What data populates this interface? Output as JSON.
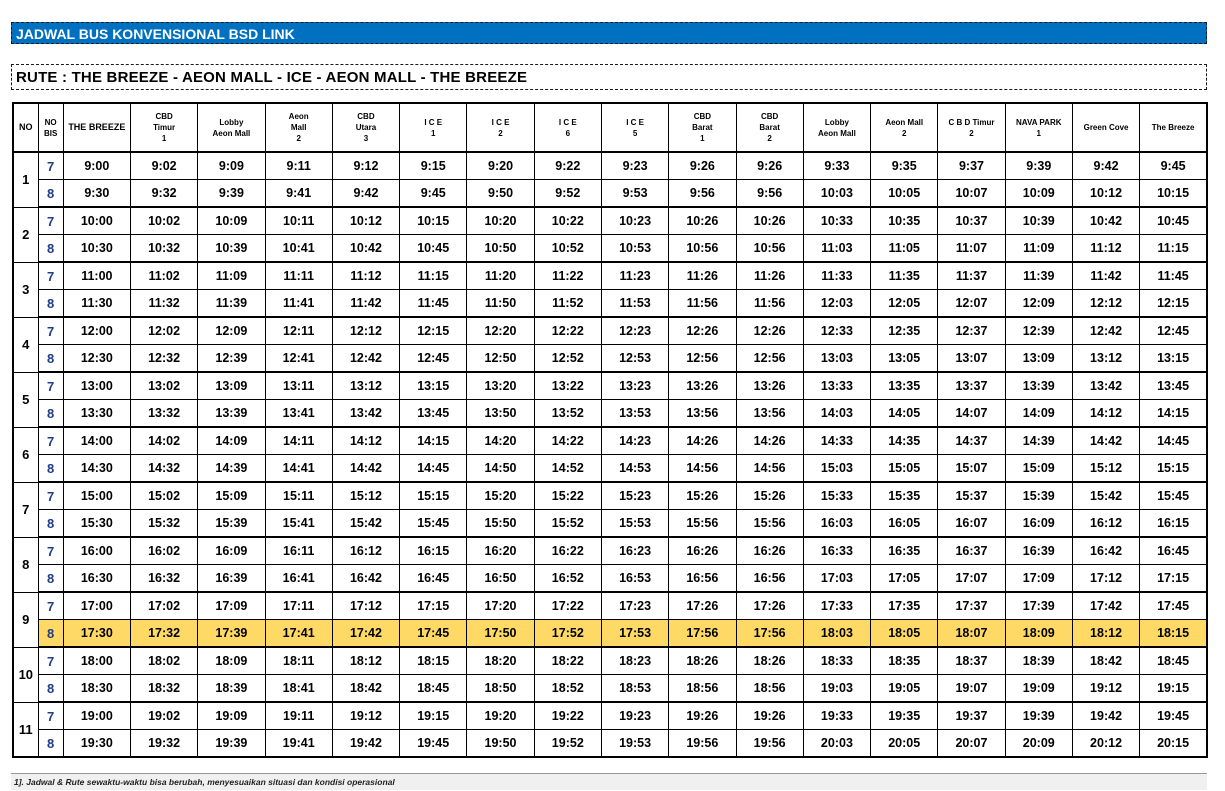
{
  "title": "JADWAL BUS KONVENSIONAL BSD LINK",
  "route": "RUTE : THE BREEZE - AEON MALL - ICE - AEON MALL - THE BREEZE",
  "headers": {
    "no": "NO",
    "bis": [
      "NO",
      "BIS"
    ],
    "stops": [
      [
        "THE BREEZE"
      ],
      [
        "CBD",
        "Timur",
        "1"
      ],
      [
        "Lobby",
        "Aeon Mall"
      ],
      [
        "Aeon",
        "Mall",
        "2"
      ],
      [
        "CBD",
        "Utara",
        "3"
      ],
      [
        "I C E",
        "1"
      ],
      [
        "I C E",
        "2"
      ],
      [
        "I C E",
        "6"
      ],
      [
        "I C E",
        "5"
      ],
      [
        "CBD",
        "Barat",
        "1"
      ],
      [
        "CBD",
        "Barat",
        "2"
      ],
      [
        "Lobby",
        "Aeon Mall"
      ],
      [
        "Aeon Mall",
        "2"
      ],
      [
        "C B D  Timur",
        "2"
      ],
      [
        "NAVA PARK",
        "1"
      ],
      [
        "Green Cove"
      ],
      [
        "The Breeze"
      ]
    ]
  },
  "trips": [
    {
      "no": "1",
      "rows": [
        {
          "bis": "7",
          "times": [
            "9:00",
            "9:02",
            "9:09",
            "9:11",
            "9:12",
            "9:15",
            "9:20",
            "9:22",
            "9:23",
            "9:26",
            "9:26",
            "9:33",
            "9:35",
            "9:37",
            "9:39",
            "9:42",
            "9:45"
          ]
        },
        {
          "bis": "8",
          "times": [
            "9:30",
            "9:32",
            "9:39",
            "9:41",
            "9:42",
            "9:45",
            "9:50",
            "9:52",
            "9:53",
            "9:56",
            "9:56",
            "10:03",
            "10:05",
            "10:07",
            "10:09",
            "10:12",
            "10:15"
          ]
        }
      ]
    },
    {
      "no": "2",
      "rows": [
        {
          "bis": "7",
          "times": [
            "10:00",
            "10:02",
            "10:09",
            "10:11",
            "10:12",
            "10:15",
            "10:20",
            "10:22",
            "10:23",
            "10:26",
            "10:26",
            "10:33",
            "10:35",
            "10:37",
            "10:39",
            "10:42",
            "10:45"
          ]
        },
        {
          "bis": "8",
          "times": [
            "10:30",
            "10:32",
            "10:39",
            "10:41",
            "10:42",
            "10:45",
            "10:50",
            "10:52",
            "10:53",
            "10:56",
            "10:56",
            "11:03",
            "11:05",
            "11:07",
            "11:09",
            "11:12",
            "11:15"
          ]
        }
      ]
    },
    {
      "no": "3",
      "rows": [
        {
          "bis": "7",
          "times": [
            "11:00",
            "11:02",
            "11:09",
            "11:11",
            "11:12",
            "11:15",
            "11:20",
            "11:22",
            "11:23",
            "11:26",
            "11:26",
            "11:33",
            "11:35",
            "11:37",
            "11:39",
            "11:42",
            "11:45"
          ]
        },
        {
          "bis": "8",
          "times": [
            "11:30",
            "11:32",
            "11:39",
            "11:41",
            "11:42",
            "11:45",
            "11:50",
            "11:52",
            "11:53",
            "11:56",
            "11:56",
            "12:03",
            "12:05",
            "12:07",
            "12:09",
            "12:12",
            "12:15"
          ]
        }
      ]
    },
    {
      "no": "4",
      "rows": [
        {
          "bis": "7",
          "times": [
            "12:00",
            "12:02",
            "12:09",
            "12:11",
            "12:12",
            "12:15",
            "12:20",
            "12:22",
            "12:23",
            "12:26",
            "12:26",
            "12:33",
            "12:35",
            "12:37",
            "12:39",
            "12:42",
            "12:45"
          ]
        },
        {
          "bis": "8",
          "times": [
            "12:30",
            "12:32",
            "12:39",
            "12:41",
            "12:42",
            "12:45",
            "12:50",
            "12:52",
            "12:53",
            "12:56",
            "12:56",
            "13:03",
            "13:05",
            "13:07",
            "13:09",
            "13:12",
            "13:15"
          ]
        }
      ]
    },
    {
      "no": "5",
      "rows": [
        {
          "bis": "7",
          "times": [
            "13:00",
            "13:02",
            "13:09",
            "13:11",
            "13:12",
            "13:15",
            "13:20",
            "13:22",
            "13:23",
            "13:26",
            "13:26",
            "13:33",
            "13:35",
            "13:37",
            "13:39",
            "13:42",
            "13:45"
          ]
        },
        {
          "bis": "8",
          "times": [
            "13:30",
            "13:32",
            "13:39",
            "13:41",
            "13:42",
            "13:45",
            "13:50",
            "13:52",
            "13:53",
            "13:56",
            "13:56",
            "14:03",
            "14:05",
            "14:07",
            "14:09",
            "14:12",
            "14:15"
          ]
        }
      ]
    },
    {
      "no": "6",
      "rows": [
        {
          "bis": "7",
          "times": [
            "14:00",
            "14:02",
            "14:09",
            "14:11",
            "14:12",
            "14:15",
            "14:20",
            "14:22",
            "14:23",
            "14:26",
            "14:26",
            "14:33",
            "14:35",
            "14:37",
            "14:39",
            "14:42",
            "14:45"
          ]
        },
        {
          "bis": "8",
          "times": [
            "14:30",
            "14:32",
            "14:39",
            "14:41",
            "14:42",
            "14:45",
            "14:50",
            "14:52",
            "14:53",
            "14:56",
            "14:56",
            "15:03",
            "15:05",
            "15:07",
            "15:09",
            "15:12",
            "15:15"
          ]
        }
      ]
    },
    {
      "no": "7",
      "rows": [
        {
          "bis": "7",
          "times": [
            "15:00",
            "15:02",
            "15:09",
            "15:11",
            "15:12",
            "15:15",
            "15:20",
            "15:22",
            "15:23",
            "15:26",
            "15:26",
            "15:33",
            "15:35",
            "15:37",
            "15:39",
            "15:42",
            "15:45"
          ]
        },
        {
          "bis": "8",
          "times": [
            "15:30",
            "15:32",
            "15:39",
            "15:41",
            "15:42",
            "15:45",
            "15:50",
            "15:52",
            "15:53",
            "15:56",
            "15:56",
            "16:03",
            "16:05",
            "16:07",
            "16:09",
            "16:12",
            "16:15"
          ]
        }
      ]
    },
    {
      "no": "8",
      "rows": [
        {
          "bis": "7",
          "times": [
            "16:00",
            "16:02",
            "16:09",
            "16:11",
            "16:12",
            "16:15",
            "16:20",
            "16:22",
            "16:23",
            "16:26",
            "16:26",
            "16:33",
            "16:35",
            "16:37",
            "16:39",
            "16:42",
            "16:45"
          ]
        },
        {
          "bis": "8",
          "times": [
            "16:30",
            "16:32",
            "16:39",
            "16:41",
            "16:42",
            "16:45",
            "16:50",
            "16:52",
            "16:53",
            "16:56",
            "16:56",
            "17:03",
            "17:05",
            "17:07",
            "17:09",
            "17:12",
            "17:15"
          ]
        }
      ]
    },
    {
      "no": "9",
      "rows": [
        {
          "bis": "7",
          "times": [
            "17:00",
            "17:02",
            "17:09",
            "17:11",
            "17:12",
            "17:15",
            "17:20",
            "17:22",
            "17:23",
            "17:26",
            "17:26",
            "17:33",
            "17:35",
            "17:37",
            "17:39",
            "17:42",
            "17:45"
          ]
        },
        {
          "bis": "8",
          "highlight": true,
          "times": [
            "17:30",
            "17:32",
            "17:39",
            "17:41",
            "17:42",
            "17:45",
            "17:50",
            "17:52",
            "17:53",
            "17:56",
            "17:56",
            "18:03",
            "18:05",
            "18:07",
            "18:09",
            "18:12",
            "18:15"
          ]
        }
      ]
    },
    {
      "no": "10",
      "rows": [
        {
          "bis": "7",
          "times": [
            "18:00",
            "18:02",
            "18:09",
            "18:11",
            "18:12",
            "18:15",
            "18:20",
            "18:22",
            "18:23",
            "18:26",
            "18:26",
            "18:33",
            "18:35",
            "18:37",
            "18:39",
            "18:42",
            "18:45"
          ]
        },
        {
          "bis": "8",
          "times": [
            "18:30",
            "18:32",
            "18:39",
            "18:41",
            "18:42",
            "18:45",
            "18:50",
            "18:52",
            "18:53",
            "18:56",
            "18:56",
            "19:03",
            "19:05",
            "19:07",
            "19:09",
            "19:12",
            "19:15"
          ]
        }
      ]
    },
    {
      "no": "11",
      "rows": [
        {
          "bis": "7",
          "times": [
            "19:00",
            "19:02",
            "19:09",
            "19:11",
            "19:12",
            "19:15",
            "19:20",
            "19:22",
            "19:23",
            "19:26",
            "19:26",
            "19:33",
            "19:35",
            "19:37",
            "19:39",
            "19:42",
            "19:45"
          ]
        },
        {
          "bis": "8",
          "times": [
            "19:30",
            "19:32",
            "19:39",
            "19:41",
            "19:42",
            "19:45",
            "19:50",
            "19:52",
            "19:53",
            "19:56",
            "19:56",
            "20:03",
            "20:05",
            "20:07",
            "20:09",
            "20:12",
            "20:15"
          ]
        }
      ]
    }
  ],
  "footnote": "1]. Jadwal & Rute sewaktu-waktu bisa berubah, menyesuaikan situasi dan kondisi operasional",
  "colors": {
    "title_bg": "#0070c0",
    "highlight": "#ffd966",
    "bis_text": "#1f3c88"
  }
}
